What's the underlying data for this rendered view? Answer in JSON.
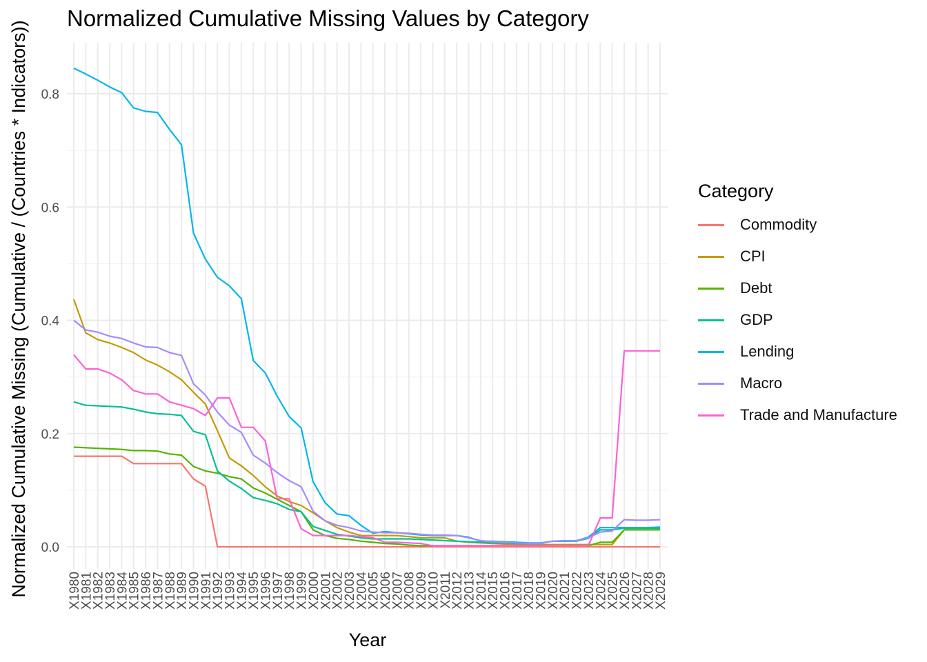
{
  "chart_data": {
    "type": "line",
    "title": "Normalized Cumulative Missing Values by Category",
    "xlabel": "Year",
    "ylabel": "Normalized Cumulative Missing (Cumulative / (Countries * Indicators))",
    "ylim": [
      -0.04,
      0.88
    ],
    "yticks": [
      "0.0",
      "0.2",
      "0.4",
      "0.6",
      "0.8"
    ],
    "grid": true,
    "legend_title": "Category",
    "legend_position": "right",
    "categories": [
      "X1980",
      "X1981",
      "X1982",
      "X1983",
      "X1984",
      "X1985",
      "X1986",
      "X1987",
      "X1988",
      "X1989",
      "X1990",
      "X1991",
      "X1992",
      "X1993",
      "X1994",
      "X1995",
      "X1996",
      "X1997",
      "X1998",
      "X1999",
      "X2000",
      "X2001",
      "X2002",
      "X2003",
      "X2004",
      "X2005",
      "X2006",
      "X2007",
      "X2008",
      "X2009",
      "X2010",
      "X2011",
      "X2012",
      "X2013",
      "X2014",
      "X2015",
      "X2016",
      "X2017",
      "X2018",
      "X2019",
      "X2020",
      "X2021",
      "X2022",
      "X2023",
      "X2024",
      "X2025",
      "X2026",
      "X2027",
      "X2028",
      "X2029"
    ],
    "series": [
      {
        "name": "Commodity",
        "color": "#F8766D",
        "values": [
          0.16,
          0.16,
          0.16,
          0.16,
          0.16,
          0.147,
          0.147,
          0.147,
          0.147,
          0.147,
          0.12,
          0.107,
          0,
          0,
          0,
          0,
          0,
          0,
          0,
          0,
          0,
          0,
          0,
          0,
          0,
          0,
          0,
          0,
          0,
          0,
          0,
          0,
          0,
          0,
          0,
          0,
          0,
          0,
          0,
          0,
          0,
          0,
          0,
          0,
          0,
          0,
          0,
          0,
          0,
          0
        ]
      },
      {
        "name": "CPI",
        "color": "#C49A00",
        "values": [
          0.437,
          0.378,
          0.366,
          0.36,
          0.352,
          0.343,
          0.33,
          0.321,
          0.309,
          0.295,
          0.273,
          0.252,
          0.205,
          0.157,
          0.143,
          0.126,
          0.106,
          0.09,
          0.08,
          0.073,
          0.06,
          0.046,
          0.034,
          0.026,
          0.02,
          0.02,
          0.02,
          0.02,
          0.018,
          0.016,
          0.016,
          0.016,
          0.01,
          0.008,
          0.007,
          0.006,
          0.005,
          0.004,
          0.004,
          0.004,
          0.004,
          0.004,
          0.004,
          0.004,
          0.004,
          0.004,
          0.03,
          0.03,
          0.03,
          0.03
        ]
      },
      {
        "name": "Debt",
        "color": "#53B400",
        "values": [
          0.176,
          0.175,
          0.174,
          0.173,
          0.172,
          0.17,
          0.17,
          0.169,
          0.164,
          0.162,
          0.142,
          0.134,
          0.13,
          0.124,
          0.12,
          0.104,
          0.095,
          0.084,
          0.073,
          0.062,
          0.03,
          0.02,
          0.015,
          0.013,
          0.01,
          0.008,
          0.006,
          0.005,
          0.003,
          0.002,
          0.002,
          0.002,
          0.002,
          0.002,
          0.002,
          0.002,
          0.002,
          0.002,
          0.002,
          0.002,
          0.002,
          0.002,
          0.002,
          0.002,
          0.008,
          0.008,
          0.03,
          0.03,
          0.03,
          0.03
        ]
      },
      {
        "name": "GDP",
        "color": "#00C094",
        "values": [
          0.256,
          0.25,
          0.249,
          0.248,
          0.247,
          0.243,
          0.238,
          0.235,
          0.234,
          0.232,
          0.204,
          0.198,
          0.134,
          0.116,
          0.103,
          0.087,
          0.082,
          0.076,
          0.066,
          0.062,
          0.036,
          0.029,
          0.022,
          0.019,
          0.016,
          0.014,
          0.014,
          0.014,
          0.014,
          0.013,
          0.012,
          0.011,
          0.01,
          0.009,
          0.008,
          0.007,
          0.007,
          0.006,
          0.006,
          0.006,
          0.01,
          0.01,
          0.01,
          0.015,
          0.03,
          0.03,
          0.033,
          0.033,
          0.033,
          0.033
        ]
      },
      {
        "name": "Lending",
        "color": "#00B6EB",
        "values": [
          0.845,
          0.835,
          0.824,
          0.812,
          0.802,
          0.775,
          0.769,
          0.767,
          0.737,
          0.71,
          0.554,
          0.508,
          0.476,
          0.461,
          0.438,
          0.329,
          0.307,
          0.266,
          0.23,
          0.21,
          0.115,
          0.078,
          0.058,
          0.055,
          0.038,
          0.024,
          0.027,
          0.025,
          0.023,
          0.021,
          0.02,
          0.02,
          0.02,
          0.017,
          0.01,
          0.01,
          0.009,
          0.008,
          0.007,
          0.007,
          0.01,
          0.01,
          0.011,
          0.017,
          0.034,
          0.034,
          0.034,
          0.034,
          0.034,
          0.035
        ]
      },
      {
        "name": "Macro",
        "color": "#A58AFF",
        "values": [
          0.4,
          0.383,
          0.379,
          0.372,
          0.368,
          0.36,
          0.353,
          0.352,
          0.343,
          0.338,
          0.288,
          0.268,
          0.238,
          0.215,
          0.202,
          0.162,
          0.148,
          0.131,
          0.117,
          0.106,
          0.063,
          0.046,
          0.038,
          0.034,
          0.028,
          0.026,
          0.025,
          0.025,
          0.024,
          0.022,
          0.021,
          0.021,
          0.02,
          0.016,
          0.011,
          0.009,
          0.008,
          0.007,
          0.006,
          0.006,
          0.01,
          0.011,
          0.011,
          0.016,
          0.026,
          0.028,
          0.048,
          0.047,
          0.047,
          0.048
        ]
      },
      {
        "name": "Trade and Manufacture",
        "color": "#FB61D7",
        "values": [
          0.339,
          0.314,
          0.314,
          0.307,
          0.295,
          0.276,
          0.27,
          0.27,
          0.256,
          0.25,
          0.244,
          0.232,
          0.263,
          0.263,
          0.211,
          0.211,
          0.187,
          0.085,
          0.085,
          0.032,
          0.02,
          0.02,
          0.02,
          0.02,
          0.018,
          0.016,
          0.008,
          0.008,
          0.007,
          0.006,
          0.002,
          0.002,
          0.002,
          0.002,
          0.002,
          0.002,
          0.002,
          0.002,
          0.002,
          0.002,
          0.002,
          0.002,
          0.002,
          0.002,
          0.051,
          0.051,
          0.346,
          0.346,
          0.346,
          0.346
        ]
      }
    ]
  }
}
